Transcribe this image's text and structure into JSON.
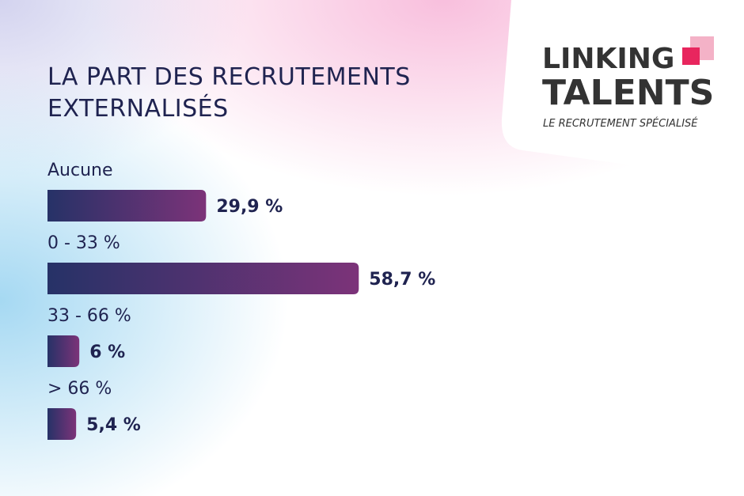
{
  "chart_data": {
    "type": "bar",
    "orientation": "horizontal",
    "title": "LA PART DES RECRUTEMENTS EXTERNALISÉS",
    "categories": [
      "Aucune",
      "0 - 33 %",
      "33 - 66 %",
      "> 66 %"
    ],
    "values": [
      29.9,
      58.7,
      6,
      5.4
    ],
    "value_labels": [
      "29,9 %",
      "58,7 %",
      "6 %",
      "5,4 %"
    ],
    "color": [
      "#263267",
      "#7c3379"
    ]
  },
  "logo": {
    "line1": "LINKING",
    "line2": "TALENTS",
    "tagline": "LE RECRUTEMENT SPÉCIALISÉ"
  }
}
